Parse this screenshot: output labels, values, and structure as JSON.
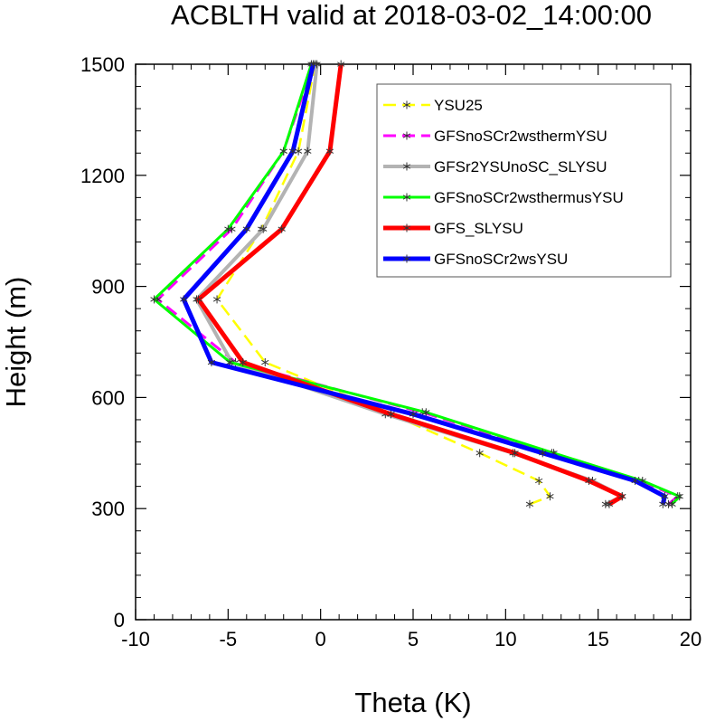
{
  "chart_data": {
    "type": "line",
    "title": "ACBLTH valid at 2018-03-02_14:00:00",
    "xlabel": "Theta (K)",
    "ylabel": "Height (m)",
    "xlim": [
      -10,
      20
    ],
    "ylim": [
      0,
      1500
    ],
    "xticks": [
      -10,
      -5,
      0,
      5,
      10,
      15,
      20
    ],
    "yticks": [
      0,
      300,
      600,
      900,
      1200,
      1500
    ],
    "legend_position": "top-right",
    "series": [
      {
        "name": "YSU25",
        "color": "#ffff00",
        "dash": "dashed",
        "points": [
          [
            11.3,
            312
          ],
          [
            12.4,
            333
          ],
          [
            11.8,
            375
          ],
          [
            8.6,
            450
          ],
          [
            3.8,
            555
          ],
          [
            -3,
            695
          ],
          [
            -5.6,
            865
          ],
          [
            -3.2,
            1055
          ],
          [
            -1.2,
            1265
          ],
          [
            -0.3,
            1500
          ]
        ]
      },
      {
        "name": "GFSnoSCr2wsthermYSU",
        "color": "#ff00ff",
        "dash": "dashed",
        "points": [
          [
            18.8,
            312
          ],
          [
            19.3,
            333
          ],
          [
            17.2,
            375
          ],
          [
            12.5,
            450
          ],
          [
            5.5,
            560
          ],
          [
            -4.6,
            695
          ],
          [
            -8.8,
            865
          ],
          [
            -4.8,
            1055
          ],
          [
            -2,
            1265
          ],
          [
            -0.4,
            1500
          ]
        ]
      },
      {
        "name": "GFSr2YSUnoSC_SLYSU",
        "color": "#b3b3b3",
        "dash": "solid",
        "points": [
          [
            15.4,
            312
          ],
          [
            16.3,
            333
          ],
          [
            14.7,
            375
          ],
          [
            10.4,
            450
          ],
          [
            3.5,
            555
          ],
          [
            -4.8,
            695
          ],
          [
            -6.7,
            865
          ],
          [
            -3.1,
            1055
          ],
          [
            -0.7,
            1265
          ],
          [
            -0.2,
            1500
          ]
        ]
      },
      {
        "name": "GFSnoSCr2wsthermusYSU",
        "color": "#00ff00",
        "dash": "solid",
        "points": [
          [
            19,
            312
          ],
          [
            19.4,
            333
          ],
          [
            17.4,
            375
          ],
          [
            12.6,
            450
          ],
          [
            5.7,
            560
          ],
          [
            -4.9,
            695
          ],
          [
            -9,
            865
          ],
          [
            -5,
            1055
          ],
          [
            -2,
            1265
          ],
          [
            -0.5,
            1500
          ]
        ]
      },
      {
        "name": "GFS_SLYSU",
        "color": "#ff0000",
        "dash": "solid",
        "points": [
          [
            15.6,
            312
          ],
          [
            16.3,
            333
          ],
          [
            14.5,
            375
          ],
          [
            10.5,
            450
          ],
          [
            3.8,
            555
          ],
          [
            -4.2,
            695
          ],
          [
            -6.6,
            865
          ],
          [
            -2.1,
            1055
          ],
          [
            0.5,
            1265
          ],
          [
            1.1,
            1500
          ]
        ]
      },
      {
        "name": "GFSnoSCr2wsYSU",
        "color": "#0000ff",
        "dash": "solid",
        "points": [
          [
            18.5,
            312
          ],
          [
            18.6,
            333
          ],
          [
            17,
            375
          ],
          [
            12,
            450
          ],
          [
            5,
            555
          ],
          [
            -5.9,
            695
          ],
          [
            -7.4,
            865
          ],
          [
            -4,
            1055
          ],
          [
            -1.5,
            1265
          ],
          [
            -0.4,
            1500
          ]
        ]
      }
    ]
  }
}
